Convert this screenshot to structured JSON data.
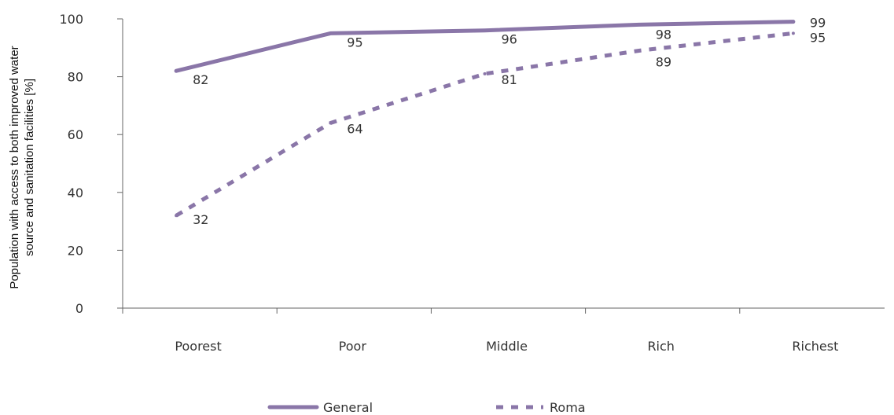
{
  "chart_data": {
    "type": "line",
    "categories": [
      "Poorest",
      "Poor",
      "Middle",
      "Rich",
      "Richest"
    ],
    "series": [
      {
        "name": "General",
        "values": [
          82,
          95,
          96,
          98,
          99
        ],
        "style": "solid",
        "color": "#8a76a8"
      },
      {
        "name": "Roma",
        "values": [
          32,
          64,
          81,
          89,
          95
        ],
        "style": "dashed",
        "color": "#8a76a8"
      }
    ],
    "ylabel_lines": [
      "Population with access to both improved water",
      "source and sanitation facilities [%]"
    ],
    "ylim": [
      0,
      100
    ],
    "yticks": [
      0,
      20,
      40,
      60,
      80,
      100
    ],
    "grid": false,
    "legend_position": "bottom"
  }
}
